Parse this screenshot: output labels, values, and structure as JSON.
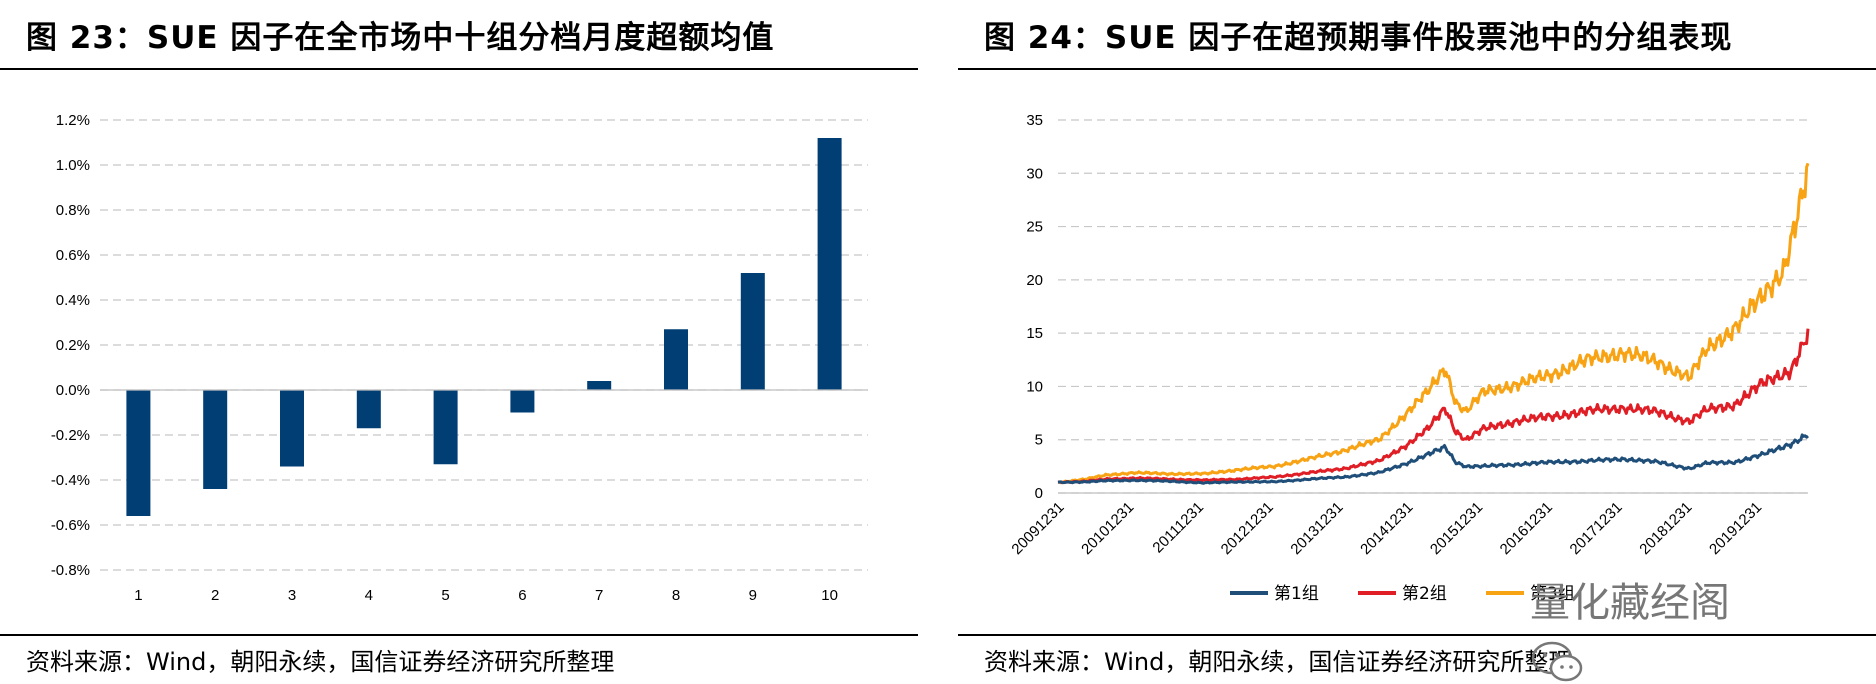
{
  "left": {
    "title": "图 23：SUE 因子在全市场中十组分档月度超额均值",
    "source": "资料来源：Wind，朝阳永续，国信证券经济研究所整理"
  },
  "right": {
    "title": "图 24：SUE 因子在超预期事件股票池中的分组表现",
    "source": "资料来源：Wind，朝阳永续，国信证券经济研究所整理"
  },
  "watermark": "量化藏经阁",
  "colors": {
    "bar": "#003E74",
    "grid": "#C8C8C8",
    "group1": "#1F4E79",
    "group2": "#E01E25",
    "group3": "#F8A314"
  },
  "chart_data": [
    {
      "type": "bar",
      "title": "",
      "categories": [
        "1",
        "2",
        "3",
        "4",
        "5",
        "6",
        "7",
        "8",
        "9",
        "10"
      ],
      "values": [
        -0.56,
        -0.44,
        -0.34,
        -0.17,
        -0.33,
        -0.1,
        0.04,
        0.27,
        0.52,
        1.12
      ],
      "unit": "%",
      "ylim": [
        -0.8,
        1.2
      ],
      "yticks": [
        "1.2%",
        "1.0%",
        "0.8%",
        "0.6%",
        "0.4%",
        "0.2%",
        "0.0%",
        "-0.2%",
        "-0.4%",
        "-0.6%",
        "-0.8%"
      ],
      "grid": true
    },
    {
      "type": "line",
      "title": "",
      "ylim": [
        0,
        35
      ],
      "yticks": [
        "35",
        "30",
        "25",
        "20",
        "15",
        "10",
        "5",
        "0"
      ],
      "xticks": [
        "20091231",
        "20101231",
        "20111231",
        "20121231",
        "20131231",
        "20141231",
        "20151231",
        "20161231",
        "20171231",
        "20181231",
        "20191231"
      ],
      "x_range": [
        2009.9,
        2020.65
      ],
      "legend_position": "bottom",
      "grid": true,
      "series": [
        {
          "name": "第1组",
          "color": "#1F4E79",
          "points": [
            [
              2009.9,
              1.0
            ],
            [
              2010.3,
              1.05
            ],
            [
              2010.6,
              1.15
            ],
            [
              2011.0,
              1.2
            ],
            [
              2011.5,
              1.1
            ],
            [
              2012.0,
              0.95
            ],
            [
              2012.5,
              1.05
            ],
            [
              2013.0,
              1.05
            ],
            [
              2013.5,
              1.3
            ],
            [
              2014.0,
              1.5
            ],
            [
              2014.5,
              1.9
            ],
            [
              2014.9,
              2.8
            ],
            [
              2015.2,
              3.6
            ],
            [
              2015.45,
              4.3
            ],
            [
              2015.6,
              2.9
            ],
            [
              2015.75,
              2.5
            ],
            [
              2016.0,
              2.5
            ],
            [
              2016.5,
              2.7
            ],
            [
              2017.0,
              2.9
            ],
            [
              2017.5,
              3.0
            ],
            [
              2018.0,
              3.2
            ],
            [
              2018.5,
              2.9
            ],
            [
              2018.95,
              2.3
            ],
            [
              2019.2,
              2.8
            ],
            [
              2019.6,
              2.9
            ],
            [
              2020.0,
              3.6
            ],
            [
              2020.4,
              4.6
            ],
            [
              2020.65,
              5.5
            ]
          ]
        },
        {
          "name": "第2组",
          "color": "#E01E25",
          "points": [
            [
              2009.9,
              1.0
            ],
            [
              2010.3,
              1.1
            ],
            [
              2010.6,
              1.3
            ],
            [
              2011.0,
              1.4
            ],
            [
              2011.5,
              1.3
            ],
            [
              2012.0,
              1.2
            ],
            [
              2012.5,
              1.3
            ],
            [
              2013.0,
              1.5
            ],
            [
              2013.5,
              1.9
            ],
            [
              2014.0,
              2.3
            ],
            [
              2014.5,
              3.0
            ],
            [
              2014.9,
              4.5
            ],
            [
              2015.2,
              6.0
            ],
            [
              2015.45,
              8.0
            ],
            [
              2015.6,
              5.8
            ],
            [
              2015.75,
              5.0
            ],
            [
              2016.0,
              6.0
            ],
            [
              2016.5,
              6.8
            ],
            [
              2017.0,
              7.2
            ],
            [
              2017.5,
              7.7
            ],
            [
              2018.0,
              8.0
            ],
            [
              2018.5,
              7.6
            ],
            [
              2018.95,
              6.7
            ],
            [
              2019.2,
              7.8
            ],
            [
              2019.6,
              8.3
            ],
            [
              2020.0,
              10.3
            ],
            [
              2020.4,
              11.5
            ],
            [
              2020.65,
              14.8
            ]
          ]
        },
        {
          "name": "第3组",
          "color": "#F8A314",
          "points": [
            [
              2009.9,
              1.0
            ],
            [
              2010.3,
              1.3
            ],
            [
              2010.6,
              1.7
            ],
            [
              2011.0,
              1.9
            ],
            [
              2011.5,
              1.8
            ],
            [
              2012.0,
              1.8
            ],
            [
              2012.5,
              2.2
            ],
            [
              2013.0,
              2.5
            ],
            [
              2013.5,
              3.2
            ],
            [
              2014.0,
              4.0
            ],
            [
              2014.5,
              5.0
            ],
            [
              2014.9,
              7.5
            ],
            [
              2015.2,
              9.5
            ],
            [
              2015.45,
              11.8
            ],
            [
              2015.6,
              8.5
            ],
            [
              2015.75,
              7.6
            ],
            [
              2016.0,
              9.5
            ],
            [
              2016.5,
              10.2
            ],
            [
              2017.0,
              11.2
            ],
            [
              2017.5,
              12.5
            ],
            [
              2018.0,
              13.2
            ],
            [
              2018.5,
              12.3
            ],
            [
              2018.95,
              10.8
            ],
            [
              2019.2,
              13.5
            ],
            [
              2019.6,
              15.5
            ],
            [
              2020.0,
              18.5
            ],
            [
              2020.3,
              21.0
            ],
            [
              2020.5,
              26.0
            ],
            [
              2020.65,
              30.0
            ]
          ]
        }
      ]
    }
  ]
}
